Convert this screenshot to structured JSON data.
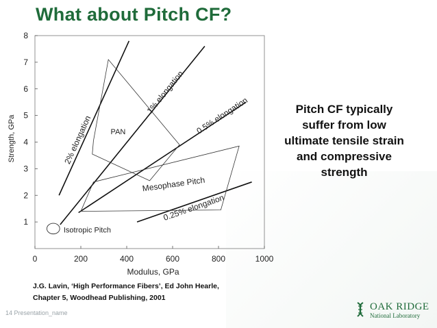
{
  "slide": {
    "title": "What about Pitch CF?",
    "callout_lines": [
      "Pitch CF typically",
      "suffer from low",
      "ultimate tensile strain",
      "and compressive",
      "strength"
    ],
    "citation_lines": [
      "J.G. Lavin, ‘High Performance Fibers’, Ed John Hearle,",
      "Chapter 5, Woodhead Publishing, 2001"
    ],
    "footer": "14  Presentation_name",
    "logo": {
      "name": "OAK RIDGE",
      "sub": "National Laboratory",
      "icon": "dna-leaf-icon",
      "color": "#1f6b3a"
    }
  },
  "chart_data": {
    "type": "scatter",
    "title": "",
    "xlabel": "Modulus, GPa",
    "ylabel": "Strength, GPa",
    "xlim": [
      0,
      1000
    ],
    "ylim": [
      0,
      8
    ],
    "xticks": [
      0,
      200,
      400,
      600,
      800,
      1000
    ],
    "yticks": [
      1,
      2,
      3,
      4,
      5,
      6,
      7,
      8
    ],
    "grid": false,
    "elongation_lines": [
      {
        "label": "2% elongation",
        "points": [
          [
            105,
            2.0
          ],
          [
            410,
            7.8
          ]
        ]
      },
      {
        "label": "1% elongation",
        "points": [
          [
            110,
            0.9
          ],
          [
            740,
            7.6
          ]
        ]
      },
      {
        "label": "0.5% elongation",
        "points": [
          [
            190,
            1.35
          ],
          [
            920,
            5.5
          ]
        ]
      },
      {
        "label": "0.25% elongation",
        "points": [
          [
            445,
            1.0
          ],
          [
            945,
            2.5
          ]
        ]
      }
    ],
    "regions": [
      {
        "label": "PAN",
        "points": [
          [
            255,
            4.05
          ],
          [
            320,
            7.1
          ],
          [
            630,
            3.9
          ],
          [
            500,
            2.55
          ],
          [
            250,
            3.55
          ]
        ]
      },
      {
        "label": "Mesophase Pitch",
        "points": [
          [
            255,
            2.5
          ],
          [
            890,
            3.85
          ],
          [
            810,
            1.45
          ],
          [
            200,
            1.4
          ]
        ]
      },
      {
        "label": "Isotropic Pitch",
        "ellipse": {
          "cx": 80,
          "cy": 0.75,
          "rx": 28,
          "ry": 0.2
        }
      }
    ]
  }
}
